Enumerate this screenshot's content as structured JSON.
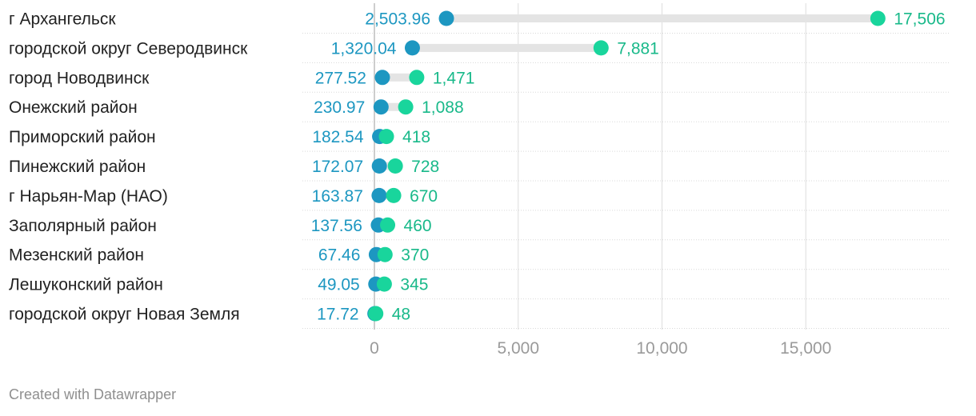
{
  "chart_data": {
    "type": "dot",
    "rows": [
      {
        "label": "г Архангельск",
        "value_a": 2503.96,
        "label_a": "2,503.96",
        "value_b": 17506,
        "label_b": "17,506"
      },
      {
        "label": "городской округ Северодвинск",
        "value_a": 1320.04,
        "label_a": "1,320.04",
        "value_b": 7881,
        "label_b": "7,881"
      },
      {
        "label": "город Новодвинск",
        "value_a": 277.52,
        "label_a": "277.52",
        "value_b": 1471,
        "label_b": "1,471"
      },
      {
        "label": "Онежский район",
        "value_a": 230.97,
        "label_a": "230.97",
        "value_b": 1088,
        "label_b": "1,088"
      },
      {
        "label": "Приморский район",
        "value_a": 182.54,
        "label_a": "182.54",
        "value_b": 418,
        "label_b": "418"
      },
      {
        "label": "Пинежский район",
        "value_a": 172.07,
        "label_a": "172.07",
        "value_b": 728,
        "label_b": "728"
      },
      {
        "label": "г Нарьян-Мар (НАО)",
        "value_a": 163.87,
        "label_a": "163.87",
        "value_b": 670,
        "label_b": "670"
      },
      {
        "label": "Заполярный район",
        "value_a": 137.56,
        "label_a": "137.56",
        "value_b": 460,
        "label_b": "460"
      },
      {
        "label": "Мезенский район",
        "value_a": 67.46,
        "label_a": "67.46",
        "value_b": 370,
        "label_b": "370"
      },
      {
        "label": "Лешуконский район",
        "value_a": 49.05,
        "label_a": "49.05",
        "value_b": 345,
        "label_b": "345"
      },
      {
        "label": "городской округ Новая Земля",
        "value_a": 17.72,
        "label_a": "17.72",
        "value_b": 48,
        "label_b": "48"
      }
    ],
    "x_ticks": [
      {
        "value": 0,
        "label": "0"
      },
      {
        "value": 5000,
        "label": "5,000"
      },
      {
        "value": 10000,
        "label": "10,000"
      },
      {
        "value": 15000,
        "label": "15,000"
      }
    ],
    "xlim": [
      0,
      20000
    ],
    "grid": true,
    "colors": {
      "value_a": "#1d97c1",
      "value_b": "#19d59c",
      "range_bar": "#e4e4e4",
      "grid": "#dddddd"
    }
  },
  "footer": {
    "credit": "Created with Datawrapper"
  }
}
